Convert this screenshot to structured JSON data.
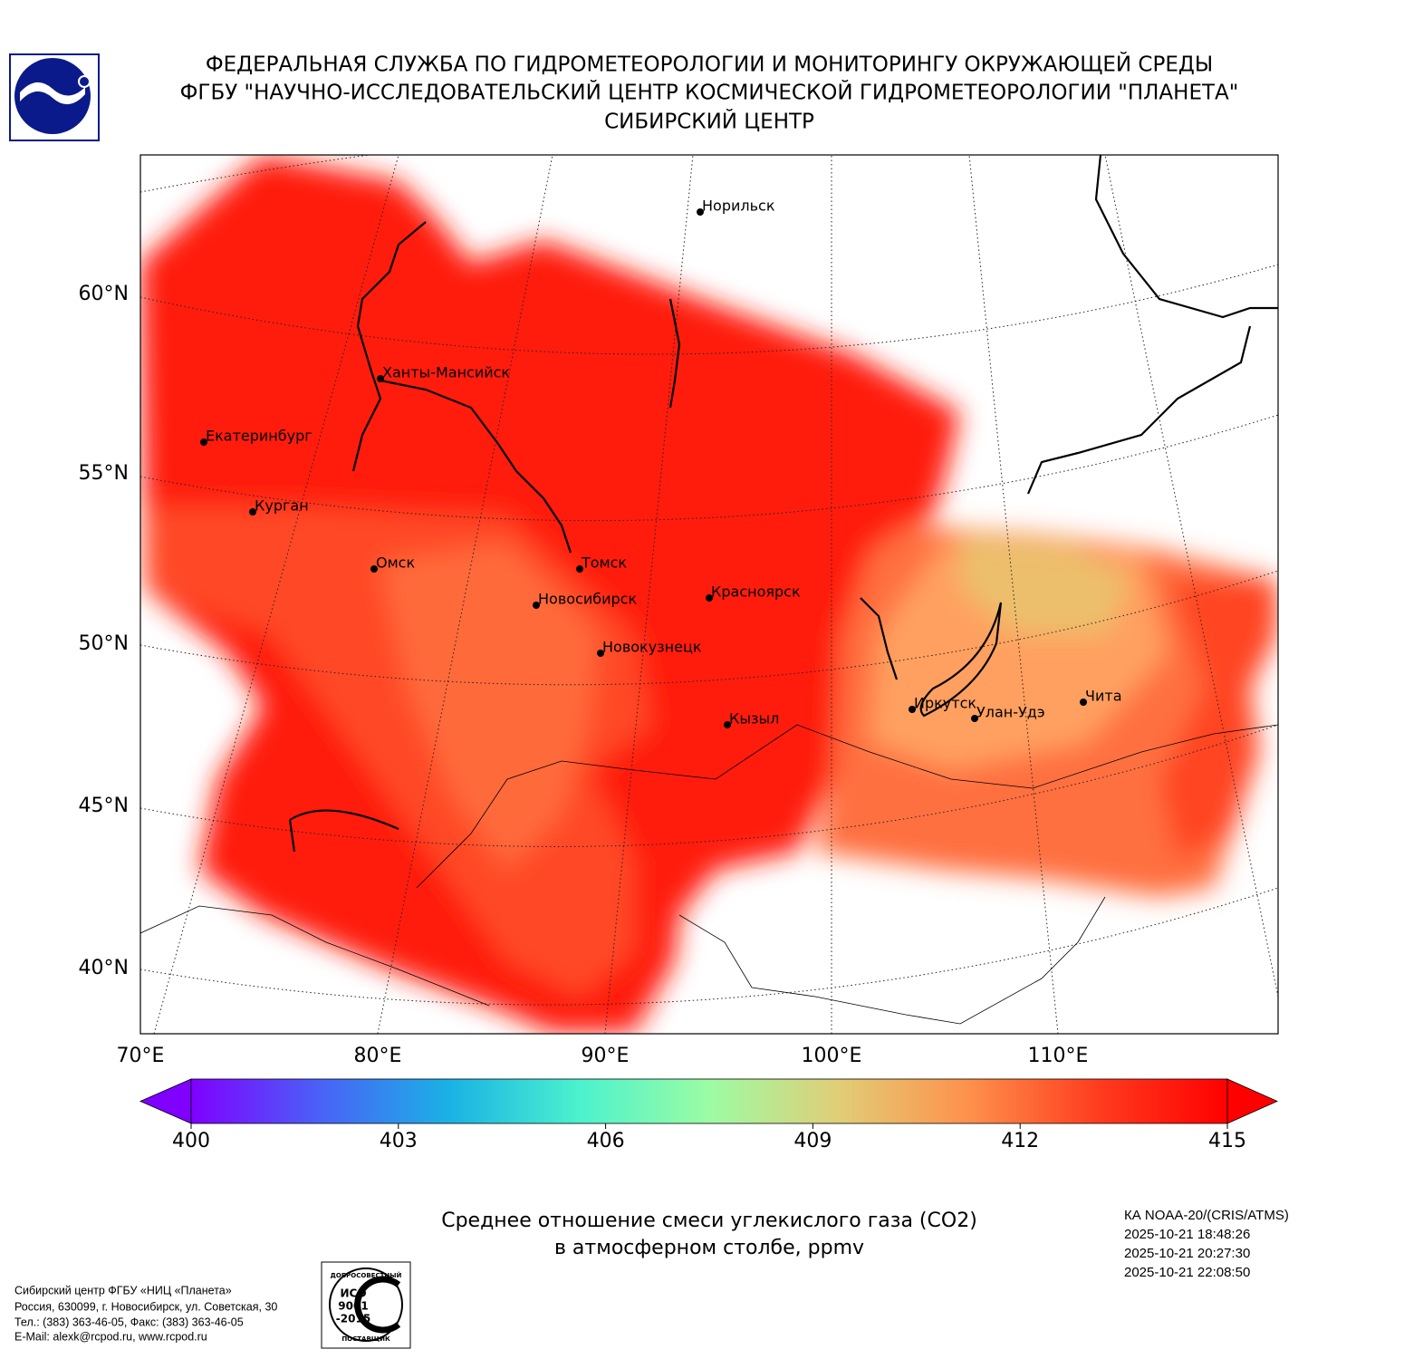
{
  "header": {
    "lines": [
      "ФЕДЕРАЛЬНАЯ СЛУЖБА ПО ГИДРОМЕТЕОРОЛОГИИ И МОНИТОРИНГУ ОКРУЖАЮЩЕЙ СРЕДЫ",
      "ФГБУ \"НАУЧНО-ИССЛЕДОВАТЕЛЬСКИЙ ЦЕНТР КОСМИЧЕСКОЙ ГИДРОМЕТЕОРОЛОГИИ \"ПЛАНЕТА\"",
      "СИБИРСКИЙ ЦЕНТР"
    ]
  },
  "map": {
    "lat_labels": [
      "60°N",
      "55°N",
      "50°N",
      "45°N",
      "40°N"
    ],
    "lon_labels": [
      "70°E",
      "80°E",
      "90°E",
      "100°E",
      "110°E"
    ],
    "cities": [
      "Норильск",
      "Ханты-Мансийск",
      "Екатеринбург",
      "Курган",
      "Омск",
      "Томск",
      "Новосибирск",
      "Красноярск",
      "Новокузнецк",
      "Кызыл",
      "Иркутск",
      "Улан-Удэ",
      "Чита"
    ]
  },
  "colorbar": {
    "lim": [
      400,
      415
    ],
    "ticks": [
      400,
      403,
      406,
      409,
      412,
      415
    ],
    "colors": [
      "#7f00ff",
      "#4a62f7",
      "#1ab2e5",
      "#4cf2cd",
      "#9cfca4",
      "#e1cd77",
      "#fe914c",
      "#ff3c1f",
      "#ff0000"
    ]
  },
  "caption": {
    "lines": [
      "Среднее отношение смеси углекислого газа (CO2)",
      "в атмосферном столбе, ppmv"
    ]
  },
  "satellite": {
    "lines": [
      "КА NOAA-20/(CRIS/ATMS)",
      "2025-10-21 18:48:26",
      "2025-10-21 20:27:30",
      "2025-10-21 22:08:50"
    ]
  },
  "footer": {
    "lines": [
      "Сибирский центр ФГБУ «НИЦ «Планета»",
      "Россия, 630099, г. Новосибирск, ул. Советская, 30",
      "Тел.: (383) 363-46-05, Факс: (383) 363-46-05",
      "E-Mail: alexk@rcpod.ru, www.rcpod.ru"
    ]
  },
  "badge": {
    "top": "ДОБРОСОВЕСТНЫЙ",
    "iso": [
      "ИСО",
      "9001",
      "-2015"
    ],
    "bottom": "ПОСТАВЩИК"
  }
}
